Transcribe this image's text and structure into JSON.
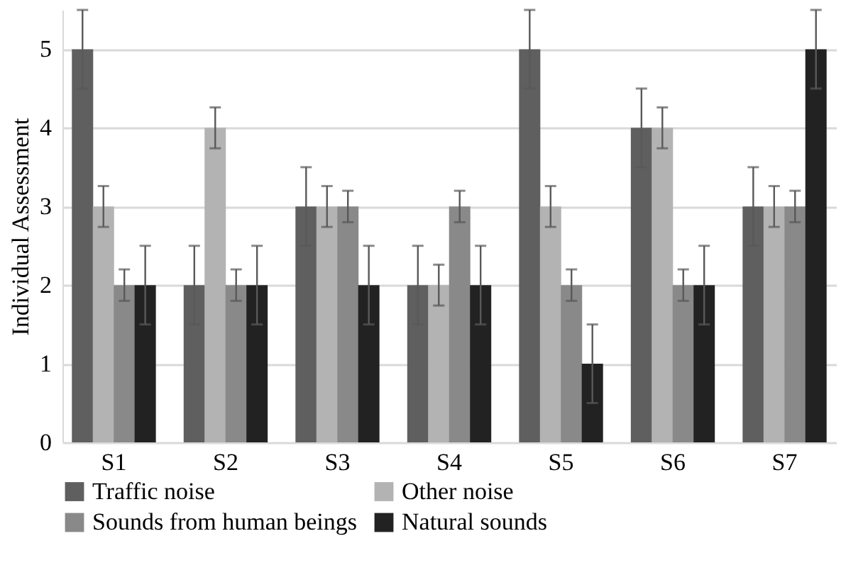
{
  "chart_data": {
    "type": "bar",
    "ylabel": "Individual Assessment",
    "categories": [
      "S1",
      "S2",
      "S3",
      "S4",
      "S5",
      "S6",
      "S7"
    ],
    "series": [
      {
        "name": "Traffic noise",
        "color": "#5f5f5f",
        "values": [
          5,
          2,
          3,
          2,
          5,
          4,
          3
        ],
        "errors": [
          0.5,
          0.5,
          0.5,
          0.5,
          0.5,
          0.5,
          0.5
        ]
      },
      {
        "name": "Other noise",
        "color": "#b3b3b3",
        "values": [
          3,
          4,
          3,
          2,
          3,
          4,
          3
        ],
        "errors": [
          0.26,
          0.26,
          0.26,
          0.26,
          0.26,
          0.26,
          0.26
        ]
      },
      {
        "name": "Sounds from human beings",
        "color": "#898989",
        "values": [
          2,
          2,
          3,
          3,
          2,
          2,
          3
        ],
        "errors": [
          0.2,
          0.2,
          0.2,
          0.2,
          0.2,
          0.2,
          0.2
        ]
      },
      {
        "name": "Natural sounds",
        "color": "#222222",
        "values": [
          2,
          2,
          2,
          2,
          1,
          2,
          5
        ],
        "errors": [
          0.5,
          0.5,
          0.5,
          0.5,
          0.5,
          0.5,
          0.5
        ]
      }
    ],
    "ylim": [
      0,
      5.5
    ],
    "yticks": [
      0,
      1,
      2,
      3,
      4,
      5
    ],
    "grid": "y",
    "legend": "bottom"
  }
}
